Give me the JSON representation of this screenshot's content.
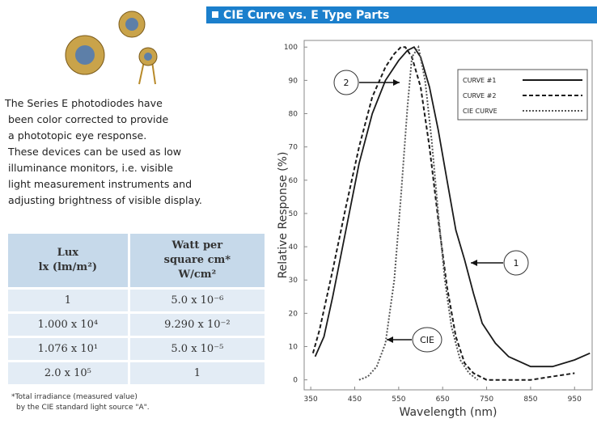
{
  "header": {
    "title": "CIE Curve vs. E Type Parts"
  },
  "description": {
    "lines": [
      "The Series E photodiodes have",
      "been color corrected to provide",
      "a phototopic eye response.",
      "These devices can be used as low",
      "illuminance monitors, i.e. visible",
      "light measurement instruments and",
      "adjusting brightness of visible display."
    ]
  },
  "table": {
    "header": [
      [
        "Lux",
        "lx (lm/m²)"
      ],
      [
        "Watt per",
        "square cm*",
        "W/cm²"
      ]
    ],
    "rows": [
      [
        "1",
        "5.0 x 10⁻⁶"
      ],
      [
        "1.000 x 10⁴",
        "9.290 x 10⁻²"
      ],
      [
        "1.076 x 10¹",
        "5.0 x 10⁻⁵"
      ],
      [
        "2.0 x 10⁵",
        "1"
      ]
    ]
  },
  "footnote": {
    "lines": [
      "*Total irradiance (measured value)",
      "by the CIE standard light source \"A\"."
    ]
  },
  "chart_data": {
    "type": "line",
    "x_label": "Wavelength (nm)",
    "y_label": "Relative Response (%)",
    "xlim": [
      335,
      990
    ],
    "xticks": [
      350,
      450,
      550,
      650,
      750,
      850,
      950
    ],
    "ylim": [
      -3,
      102
    ],
    "yticks": [
      0,
      10,
      20,
      30,
      40,
      50,
      60,
      70,
      80,
      90,
      100
    ],
    "legend": "upper right",
    "series": [
      {
        "name": "CURVE #1",
        "color": "#1a1a1a",
        "dash": "solid",
        "x": [
          360,
          380,
          400,
          430,
          460,
          490,
          520,
          550,
          570,
          585,
          600,
          620,
          640,
          660,
          680,
          700,
          720,
          740,
          770,
          800,
          850,
          900,
          950,
          985
        ],
        "values": [
          7,
          13,
          25,
          45,
          65,
          80,
          90,
          96,
          99,
          100,
          97,
          88,
          75,
          60,
          45,
          36,
          26,
          17,
          11,
          7,
          4,
          4,
          6,
          8
        ]
      },
      {
        "name": "CURVE #2",
        "color": "#1a1a1a",
        "dash": "dashed",
        "x": [
          355,
          370,
          400,
          430,
          460,
          490,
          520,
          540,
          555,
          565,
          580,
          600,
          620,
          640,
          660,
          680,
          700,
          720,
          750,
          800,
          850,
          900,
          950
        ],
        "values": [
          8,
          15,
          33,
          52,
          70,
          85,
          94,
          98,
          100,
          100,
          97,
          88,
          70,
          48,
          28,
          13,
          5,
          2,
          0,
          0,
          0,
          1,
          2
        ]
      },
      {
        "name": "CIE CURVE",
        "color": "#555555",
        "dash": "dotted",
        "x": [
          460,
          480,
          500,
          520,
          540,
          555,
          570,
          580,
          595,
          610,
          625,
          640,
          655,
          670,
          690,
          710,
          730
        ],
        "values": [
          0,
          1,
          4,
          11,
          30,
          55,
          82,
          97,
          100,
          90,
          72,
          50,
          30,
          16,
          6,
          2,
          0
        ]
      }
    ],
    "annotations": [
      "1",
      "2",
      "CIE"
    ]
  }
}
